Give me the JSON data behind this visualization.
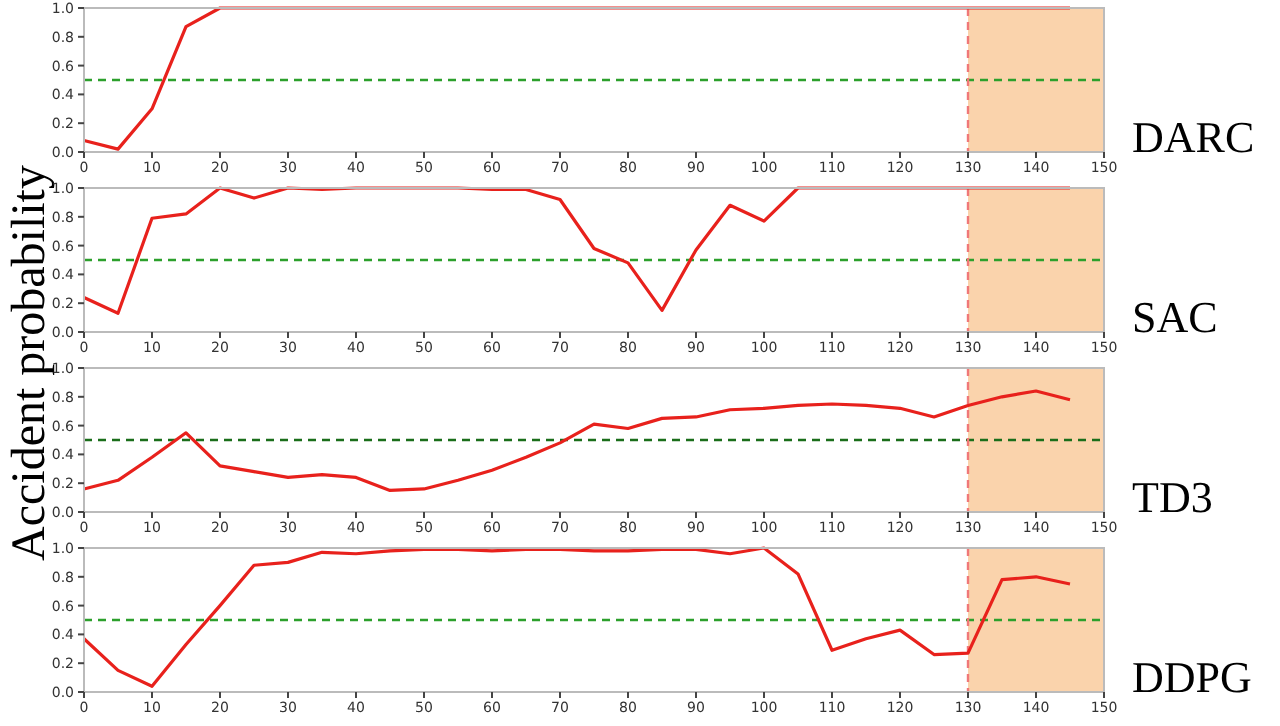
{
  "chart_data": [
    {
      "type": "line",
      "title": "DARC",
      "ylabel": "Accident probability",
      "x": [
        0,
        5,
        10,
        15,
        20,
        25,
        30,
        35,
        40,
        45,
        50,
        55,
        60,
        65,
        70,
        75,
        80,
        85,
        90,
        95,
        100,
        105,
        110,
        115,
        120,
        125,
        130,
        135,
        140,
        145
      ],
      "series": [
        {
          "color": "#e8211c",
          "values": [
            0.08,
            0.02,
            0.3,
            0.87,
            1.0,
            1.0,
            1.0,
            1.0,
            1.0,
            1.0,
            1.0,
            1.0,
            1.0,
            1.0,
            1.0,
            1.0,
            1.0,
            1.0,
            1.0,
            1.0,
            1.0,
            1.0,
            1.0,
            1.0,
            1.0,
            1.0,
            1.0,
            1.0,
            1.0,
            1.0
          ]
        }
      ],
      "xlim": [
        0,
        150
      ],
      "xticks": [
        0,
        10,
        20,
        30,
        40,
        50,
        60,
        70,
        80,
        90,
        100,
        110,
        120,
        130,
        140,
        150
      ],
      "ylim": [
        0,
        1
      ],
      "yticks": [
        {
          "value": 0,
          "label": "0.0"
        },
        {
          "value": 0.2,
          "label": "0.2"
        },
        {
          "value": 0.4,
          "label": "0.4"
        },
        {
          "value": 0.6,
          "label": "0.6"
        },
        {
          "value": 0.8,
          "label": "0.8"
        },
        {
          "value": 1,
          "label": "1.0"
        }
      ],
      "ref_lines": [
        {
          "axis": "y",
          "value": 0.5,
          "color": "#2ca02c",
          "line_style": "dashed"
        },
        {
          "axis": "x",
          "value": 130,
          "color": "#f07878",
          "line_style": "dashed"
        }
      ],
      "bands": [
        {
          "axis": "x",
          "from": 130,
          "to": 150,
          "color": "#fad3ac"
        }
      ],
      "grid": false
    },
    {
      "type": "line",
      "title": "SAC",
      "x": [
        0,
        5,
        10,
        15,
        20,
        25,
        30,
        35,
        40,
        45,
        50,
        55,
        60,
        65,
        70,
        75,
        80,
        85,
        90,
        95,
        100,
        105,
        110,
        115,
        120,
        125,
        130,
        135,
        140,
        145
      ],
      "series": [
        {
          "color": "#e8211c",
          "values": [
            0.24,
            0.13,
            0.79,
            0.82,
            1.0,
            0.93,
            1.0,
            0.99,
            1.0,
            1.0,
            1.0,
            1.0,
            0.99,
            0.99,
            0.92,
            0.58,
            0.48,
            0.15,
            0.57,
            0.88,
            0.77,
            1.0,
            1.0,
            1.0,
            1.0,
            1.0,
            1.0,
            1.0,
            1.0,
            1.0
          ]
        }
      ],
      "xlim": [
        0,
        150
      ],
      "xticks": [
        0,
        10,
        20,
        30,
        40,
        50,
        60,
        70,
        80,
        90,
        100,
        110,
        120,
        130,
        140,
        150
      ],
      "ylim": [
        0,
        1
      ],
      "yticks": [
        {
          "value": 0,
          "label": "0.0"
        },
        {
          "value": 0.2,
          "label": "0.2"
        },
        {
          "value": 0.4,
          "label": "0.4"
        },
        {
          "value": 0.6,
          "label": "0.6"
        },
        {
          "value": 0.8,
          "label": "0.8"
        },
        {
          "value": 1,
          "label": "1.0"
        }
      ],
      "ref_lines": [
        {
          "axis": "y",
          "value": 0.5,
          "color": "#2ca02c",
          "line_style": "dashed"
        },
        {
          "axis": "x",
          "value": 130,
          "color": "#f07878",
          "line_style": "dashed"
        }
      ],
      "bands": [
        {
          "axis": "x",
          "from": 130,
          "to": 150,
          "color": "#fad3ac"
        }
      ],
      "grid": false
    },
    {
      "type": "line",
      "title": "TD3",
      "x": [
        0,
        5,
        10,
        15,
        20,
        25,
        30,
        35,
        40,
        45,
        50,
        55,
        60,
        65,
        70,
        75,
        80,
        85,
        90,
        95,
        100,
        105,
        110,
        115,
        120,
        125,
        130,
        135,
        140,
        145
      ],
      "series": [
        {
          "color": "#e8211c",
          "values": [
            0.16,
            0.22,
            0.38,
            0.55,
            0.32,
            0.28,
            0.24,
            0.26,
            0.24,
            0.15,
            0.16,
            0.22,
            0.29,
            0.38,
            0.48,
            0.61,
            0.58,
            0.65,
            0.66,
            0.71,
            0.72,
            0.74,
            0.75,
            0.74,
            0.72,
            0.66,
            0.74,
            0.8,
            0.84,
            0.78
          ]
        }
      ],
      "xlim": [
        0,
        150
      ],
      "xticks": [
        0,
        10,
        20,
        30,
        40,
        50,
        60,
        70,
        80,
        90,
        100,
        110,
        120,
        130,
        140,
        150
      ],
      "ylim": [
        0,
        1
      ],
      "yticks": [
        {
          "value": 0,
          "label": "0.0"
        },
        {
          "value": 0.2,
          "label": "0.2"
        },
        {
          "value": 0.4,
          "label": "0.4"
        },
        {
          "value": 0.6,
          "label": "0.6"
        },
        {
          "value": 0.8,
          "label": "0.8"
        },
        {
          "value": 1,
          "label": "1.0"
        }
      ],
      "ref_lines": [
        {
          "axis": "y",
          "value": 0.5,
          "color": "#1a6e1a",
          "line_style": "dashed"
        },
        {
          "axis": "x",
          "value": 130,
          "color": "#f07878",
          "line_style": "dashed"
        }
      ],
      "bands": [
        {
          "axis": "x",
          "from": 130,
          "to": 150,
          "color": "#fad3ac"
        }
      ],
      "grid": false
    },
    {
      "type": "line",
      "title": "DDPG",
      "x": [
        0,
        5,
        10,
        15,
        20,
        25,
        30,
        35,
        40,
        45,
        50,
        55,
        60,
        65,
        70,
        75,
        80,
        85,
        90,
        95,
        100,
        105,
        110,
        115,
        120,
        125,
        130,
        135,
        140,
        145
      ],
      "series": [
        {
          "color": "#e8211c",
          "values": [
            0.37,
            0.15,
            0.04,
            0.33,
            0.6,
            0.88,
            0.9,
            0.97,
            0.96,
            0.98,
            0.99,
            0.99,
            0.98,
            0.99,
            0.99,
            0.98,
            0.98,
            0.99,
            0.99,
            0.96,
            1.0,
            0.82,
            0.29,
            0.37,
            0.43,
            0.26,
            0.27,
            0.78,
            0.8,
            0.75
          ]
        }
      ],
      "xlim": [
        0,
        150
      ],
      "xticks": [
        0,
        10,
        20,
        30,
        40,
        50,
        60,
        70,
        80,
        90,
        100,
        110,
        120,
        130,
        140,
        150
      ],
      "ylim": [
        0,
        1
      ],
      "yticks": [
        {
          "value": 0,
          "label": "0.0"
        },
        {
          "value": 0.2,
          "label": "0.2"
        },
        {
          "value": 0.4,
          "label": "0.4"
        },
        {
          "value": 0.6,
          "label": "0.6"
        },
        {
          "value": 0.8,
          "label": "0.8"
        },
        {
          "value": 1,
          "label": "1.0"
        }
      ],
      "ref_lines": [
        {
          "axis": "y",
          "value": 0.5,
          "color": "#2ca02c",
          "line_style": "dashed"
        },
        {
          "axis": "x",
          "value": 130,
          "color": "#f07878",
          "line_style": "dashed"
        }
      ],
      "bands": [
        {
          "axis": "x",
          "from": 130,
          "to": 150,
          "color": "#fad3ac"
        }
      ],
      "grid": false
    }
  ]
}
